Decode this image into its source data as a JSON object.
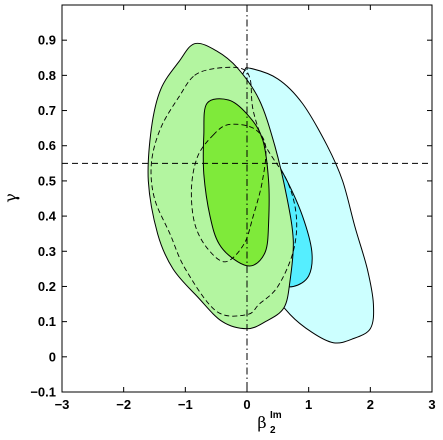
{
  "chart_data": {
    "type": "contour",
    "title": "",
    "xlabel": {
      "symbol": "β",
      "subscript": "2",
      "superscript": "Im"
    },
    "ylabel": "γ",
    "xlim": [
      -3,
      3
    ],
    "ylim": [
      -0.1,
      1.0
    ],
    "x_ticks": [
      "−3",
      "−2",
      "−1",
      "0",
      "1",
      "2",
      "3"
    ],
    "y_ticks": [
      "−0.1",
      "0",
      "0.1",
      "0.2",
      "0.3",
      "0.4",
      "0.5",
      "0.6",
      "0.7",
      "0.8",
      "0.9"
    ],
    "x_tick_values": [
      -3,
      -2,
      -1,
      0,
      1,
      2,
      3
    ],
    "y_tick_values": [
      -0.1,
      0,
      0.1,
      0.2,
      0.3,
      0.4,
      0.5,
      0.6,
      0.7,
      0.8,
      0.9
    ],
    "reference_lines": {
      "vertical_dashdot_x": 0,
      "horizontal_dashed_y": 0.55
    },
    "colors": {
      "cyan_outer": "#ccffff",
      "cyan_inner": "#55eeff",
      "green_outer": "#b3f5a0",
      "green_inner": "#7fea3a"
    },
    "regions": [
      {
        "name": "cyan-outer-contour",
        "color": "#ccffff",
        "points": [
          [
            0.05,
            0.82
          ],
          [
            0.5,
            0.79
          ],
          [
            0.9,
            0.72
          ],
          [
            1.3,
            0.6
          ],
          [
            1.55,
            0.5
          ],
          [
            1.75,
            0.37
          ],
          [
            1.95,
            0.25
          ],
          [
            2.05,
            0.15
          ],
          [
            2.0,
            0.08
          ],
          [
            1.7,
            0.05
          ],
          [
            1.4,
            0.04
          ],
          [
            1.05,
            0.07
          ],
          [
            0.7,
            0.12
          ],
          [
            0.35,
            0.2
          ],
          [
            0.05,
            0.3
          ],
          [
            -0.15,
            0.4
          ],
          [
            -0.3,
            0.5
          ],
          [
            -0.3,
            0.62
          ],
          [
            -0.2,
            0.74
          ],
          [
            -0.05,
            0.81
          ]
        ]
      },
      {
        "name": "cyan-inner-contour",
        "color": "#55eeff",
        "points": [
          [
            0.05,
            0.63
          ],
          [
            0.35,
            0.59
          ],
          [
            0.65,
            0.5
          ],
          [
            0.9,
            0.4
          ],
          [
            1.05,
            0.3
          ],
          [
            1.0,
            0.23
          ],
          [
            0.75,
            0.2
          ],
          [
            0.45,
            0.21
          ],
          [
            0.2,
            0.26
          ],
          [
            0.0,
            0.33
          ],
          [
            -0.1,
            0.42
          ],
          [
            -0.1,
            0.52
          ],
          [
            -0.05,
            0.6
          ]
        ]
      },
      {
        "name": "green-outer-contour",
        "color": "#b3f5a0",
        "points": [
          [
            -1.1,
            0.84
          ],
          [
            -0.85,
            0.89
          ],
          [
            -0.5,
            0.87
          ],
          [
            -0.15,
            0.82
          ],
          [
            0.2,
            0.73
          ],
          [
            0.45,
            0.6
          ],
          [
            0.65,
            0.45
          ],
          [
            0.75,
            0.33
          ],
          [
            0.7,
            0.22
          ],
          [
            0.6,
            0.14
          ],
          [
            0.3,
            0.1
          ],
          [
            0.0,
            0.08
          ],
          [
            -0.4,
            0.1
          ],
          [
            -0.8,
            0.17
          ],
          [
            -1.2,
            0.25
          ],
          [
            -1.45,
            0.35
          ],
          [
            -1.6,
            0.5
          ],
          [
            -1.55,
            0.65
          ],
          [
            -1.4,
            0.76
          ]
        ]
      },
      {
        "name": "green-inner-contour",
        "color": "#7fea3a",
        "points": [
          [
            -0.65,
            0.72
          ],
          [
            -0.3,
            0.73
          ],
          [
            0.0,
            0.69
          ],
          [
            0.25,
            0.62
          ],
          [
            0.35,
            0.5
          ],
          [
            0.35,
            0.38
          ],
          [
            0.3,
            0.3
          ],
          [
            0.1,
            0.26
          ],
          [
            -0.15,
            0.27
          ],
          [
            -0.45,
            0.32
          ],
          [
            -0.6,
            0.4
          ],
          [
            -0.7,
            0.52
          ],
          [
            -0.7,
            0.63
          ]
        ]
      }
    ],
    "dashed_contours": [
      {
        "name": "dashed-outer-contour",
        "points": [
          [
            -0.85,
            0.8
          ],
          [
            -0.5,
            0.82
          ],
          [
            -0.1,
            0.82
          ],
          [
            0.05,
            0.79
          ],
          [
            0.1,
            0.7
          ],
          [
            0.3,
            0.6
          ],
          [
            0.65,
            0.5
          ],
          [
            0.8,
            0.4
          ],
          [
            0.75,
            0.3
          ],
          [
            0.5,
            0.2
          ],
          [
            0.2,
            0.15
          ],
          [
            0.0,
            0.12
          ],
          [
            -0.5,
            0.13
          ],
          [
            -1.0,
            0.25
          ],
          [
            -1.25,
            0.35
          ],
          [
            -1.5,
            0.45
          ],
          [
            -1.55,
            0.55
          ],
          [
            -1.4,
            0.65
          ],
          [
            -1.1,
            0.74
          ]
        ]
      },
      {
        "name": "dashed-inner-contour",
        "points": [
          [
            -0.55,
            0.63
          ],
          [
            -0.3,
            0.66
          ],
          [
            0.1,
            0.65
          ],
          [
            0.3,
            0.6
          ],
          [
            0.25,
            0.5
          ],
          [
            0.1,
            0.4
          ],
          [
            -0.05,
            0.32
          ],
          [
            -0.35,
            0.27
          ],
          [
            -0.65,
            0.31
          ],
          [
            -0.85,
            0.38
          ],
          [
            -0.9,
            0.48
          ],
          [
            -0.8,
            0.57
          ]
        ]
      }
    ]
  }
}
